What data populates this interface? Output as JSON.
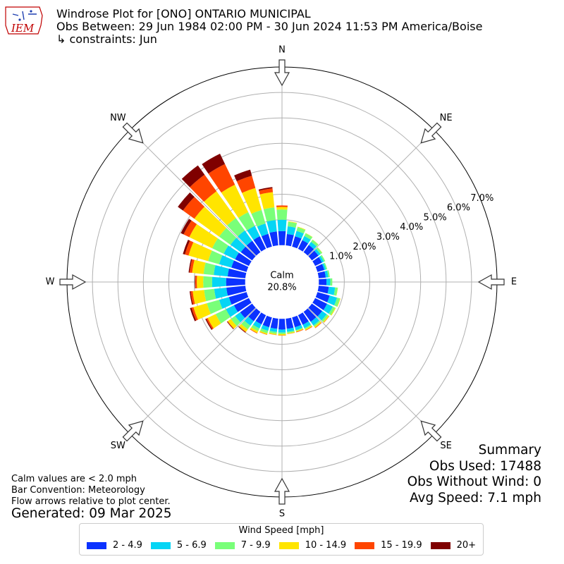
{
  "header": {
    "logo_text": "IEM",
    "title": "Windrose Plot for [ONO] ONTARIO MUNICIPAL",
    "subtitle": "Obs Between: 29 Jun 1984 02:00 PM - 30 Jun 2024 11:53 PM America/Boise",
    "constraints": "↳ constraints: Jun"
  },
  "summary": {
    "heading": "Summary",
    "obs_used": "Obs Used: 17488",
    "obs_without_wind": "Obs Without Wind: 0",
    "avg_speed": "Avg Speed: 7.1 mph"
  },
  "notes": {
    "calm_note": "Calm values are < 2.0 mph",
    "bar_convention": "Bar Convention: Meteorology",
    "flow_note": "Flow arrows relative to plot center.",
    "generated": "Generated: 09 Mar 2025"
  },
  "chart_data": {
    "type": "bar",
    "subtype": "polar-stacked-windrose",
    "calm_label": "Calm",
    "calm_value": "20.8%",
    "compass_labels": [
      "N",
      "NE",
      "E",
      "SE",
      "S",
      "SW",
      "W",
      "NW"
    ],
    "radial_ticks": [
      1,
      2,
      3,
      4,
      5,
      6,
      7
    ],
    "radial_tick_labels": [
      "1.0%",
      "2.0%",
      "3.0%",
      "4.0%",
      "5.0%",
      "6.0%",
      "7.0%"
    ],
    "rmax": 7.0,
    "calm_radius_percent": 1.2,
    "legend_title": "Wind Speed [mph]",
    "legend_placement": "bottom-center",
    "grid": true,
    "direction_unit": "degrees",
    "directions": [
      0,
      10,
      20,
      30,
      40,
      50,
      60,
      70,
      80,
      90,
      100,
      110,
      120,
      130,
      140,
      150,
      160,
      170,
      180,
      190,
      200,
      210,
      220,
      230,
      240,
      250,
      260,
      270,
      280,
      290,
      300,
      310,
      320,
      330,
      340,
      350
    ],
    "series": [
      {
        "name": "2 - 4.9",
        "color": "#0b32ff",
        "values": [
          0.55,
          0.45,
          0.42,
          0.38,
          0.35,
          0.32,
          0.3,
          0.28,
          0.28,
          0.3,
          0.4,
          0.5,
          0.52,
          0.5,
          0.48,
          0.42,
          0.4,
          0.4,
          0.42,
          0.4,
          0.4,
          0.4,
          0.45,
          0.58,
          0.65,
          0.72,
          0.75,
          0.75,
          0.7,
          0.62,
          0.6,
          0.55,
          0.55,
          0.55,
          0.52,
          0.55
        ]
      },
      {
        "name": "5 - 6.9",
        "color": "#05d5f5",
        "values": [
          0.45,
          0.3,
          0.22,
          0.18,
          0.15,
          0.1,
          0.08,
          0.07,
          0.1,
          0.15,
          0.25,
          0.3,
          0.25,
          0.22,
          0.18,
          0.15,
          0.12,
          0.12,
          0.12,
          0.13,
          0.15,
          0.18,
          0.22,
          0.25,
          0.35,
          0.4,
          0.48,
          0.55,
          0.55,
          0.5,
          0.5,
          0.5,
          0.5,
          0.45,
          0.42,
          0.45
        ]
      },
      {
        "name": "7 - 9.9",
        "color": "#79ff79",
        "values": [
          0.4,
          0.18,
          0.15,
          0.12,
          0.1,
          0.08,
          0.06,
          0.05,
          0.06,
          0.08,
          0.1,
          0.12,
          0.1,
          0.08,
          0.06,
          0.05,
          0.04,
          0.05,
          0.06,
          0.07,
          0.1,
          0.12,
          0.18,
          0.2,
          0.45,
          0.5,
          0.4,
          0.35,
          0.4,
          0.45,
          0.5,
          0.55,
          0.6,
          0.6,
          0.55,
          0.5
        ]
      },
      {
        "name": "10 - 14.9",
        "color": "#ffe500",
        "values": [
          0.1,
          0.02,
          0.02,
          0.01,
          0.01,
          0.01,
          0.0,
          0.0,
          0.0,
          0.0,
          0.01,
          0.02,
          0.03,
          0.04,
          0.05,
          0.04,
          0.03,
          0.03,
          0.05,
          0.04,
          0.05,
          0.08,
          0.12,
          0.15,
          0.35,
          0.55,
          0.45,
          0.25,
          0.45,
          0.8,
          1.0,
          1.2,
          1.3,
          1.2,
          0.9,
          0.6
        ]
      },
      {
        "name": "15 - 19.9",
        "color": "#ff4500",
        "values": [
          0.06,
          0.0,
          0.0,
          0.0,
          0.0,
          0.0,
          0.0,
          0.0,
          0.0,
          0.0,
          0.0,
          0.0,
          0.0,
          0.01,
          0.02,
          0.02,
          0.02,
          0.01,
          0.01,
          0.01,
          0.01,
          0.02,
          0.02,
          0.02,
          0.06,
          0.08,
          0.08,
          0.06,
          0.1,
          0.15,
          0.25,
          0.55,
          0.8,
          0.9,
          0.5,
          0.15
        ]
      },
      {
        "name": "20+",
        "color": "#7f0000",
        "values": [
          0.0,
          0.0,
          0.0,
          0.0,
          0.0,
          0.0,
          0.0,
          0.0,
          0.0,
          0.0,
          0.0,
          0.0,
          0.0,
          0.0,
          0.0,
          0.0,
          0.0,
          0.0,
          0.0,
          0.0,
          0.0,
          0.0,
          0.02,
          0.02,
          0.04,
          0.06,
          0.04,
          0.02,
          0.04,
          0.08,
          0.12,
          0.25,
          0.45,
          0.45,
          0.25,
          0.05
        ]
      }
    ]
  }
}
